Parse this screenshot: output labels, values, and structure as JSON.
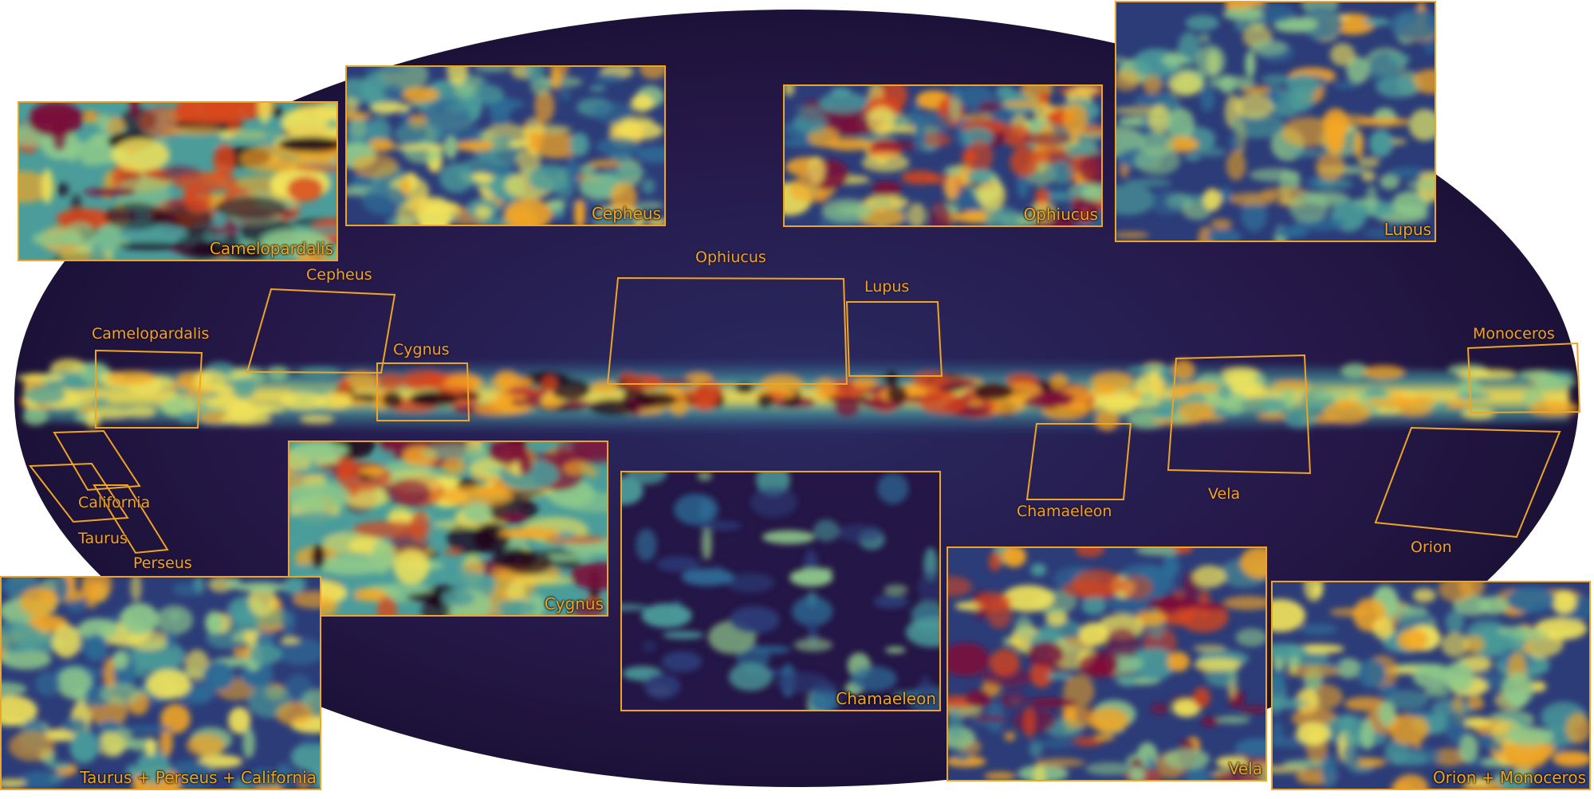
{
  "map_labels": {
    "camelopardalis": "Camelopardalis",
    "cepheus": "Cepheus",
    "cygnus": "Cygnus",
    "ophiucus": "Ophiucus",
    "lupus": "Lupus",
    "monoceros": "Monoceros",
    "vela": "Vela",
    "chamaeleon": "Chamaeleon",
    "orion": "Orion",
    "california": "California",
    "taurus": "Taurus",
    "perseus": "Perseus"
  },
  "insets": {
    "camelopardalis": "Camelopardalis",
    "cepheus": "Cepheus",
    "ophiucus": "Ophiucus",
    "lupus": "Lupus",
    "cygnus": "Cygnus",
    "chamaeleon": "Chamaeleon",
    "vela": "Vela",
    "taurus_perseus_california": "Taurus + Perseus + California",
    "orion_monoceros": "Orion + Monoceros"
  },
  "colors": {
    "outline": "#f0a424",
    "background_dust": "#251848",
    "colormap": [
      "#241646",
      "#2c3c78",
      "#2e6b96",
      "#4b9c9a",
      "#8fc98a",
      "#f2e35a",
      "#f5a623",
      "#d9461c",
      "#7a0e3a",
      "#1c0418"
    ]
  }
}
